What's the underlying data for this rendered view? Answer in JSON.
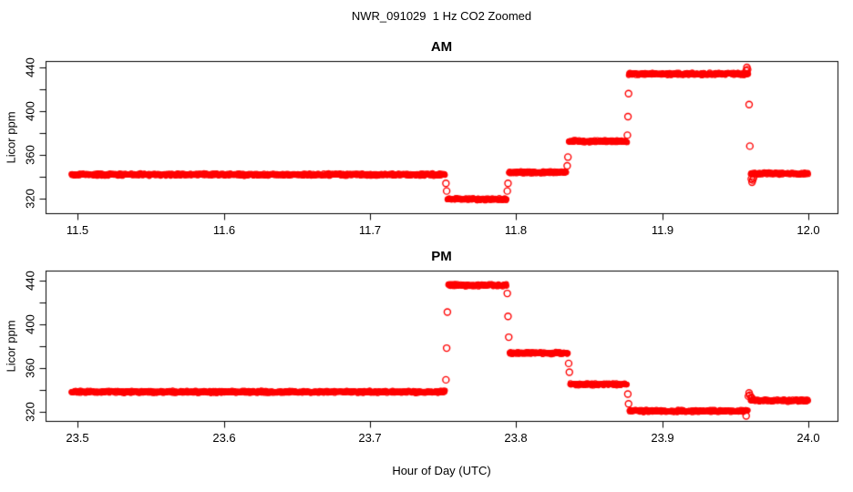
{
  "header": {
    "title": "NWR_091029  1 Hz CO2 Zoomed"
  },
  "footer": {
    "xlabel": "Hour of Day (UTC)"
  },
  "style": {
    "point_color": "#ff0000",
    "axis_color": "#000000",
    "background": "#ffffff"
  },
  "chart_data": [
    {
      "type": "scatter",
      "panel": "AM",
      "title": "AM",
      "ylabel": "Licor ppm",
      "sample_rate_hz": 1,
      "xlim": [
        11.478,
        12.02
      ],
      "ylim": [
        306.7,
        445.8
      ],
      "xticks": [
        11.5,
        11.6,
        11.7,
        11.8,
        11.9,
        12.0
      ],
      "xtick_labels": [
        "11.5",
        "11.6",
        "11.7",
        "11.8",
        "11.9",
        "12.0"
      ],
      "yticks_labeled": [
        320,
        360,
        400,
        440
      ],
      "ytick_labels": [
        "320",
        "360",
        "400",
        "440"
      ],
      "yticks_minor": [
        340,
        380,
        420
      ],
      "segments": [
        {
          "start": 11.4956,
          "end": 11.7515,
          "ppm": 342
        },
        {
          "start": 11.753,
          "end": 11.7935,
          "ppm": 319.5
        },
        {
          "start": 11.795,
          "end": 11.8345,
          "ppm": 344
        },
        {
          "start": 11.836,
          "end": 11.876,
          "ppm": 372.5
        },
        {
          "start": 11.877,
          "end": 11.959,
          "ppm": 434
        },
        {
          "start": 11.9605,
          "end": 12.0,
          "ppm": 343
        }
      ],
      "transition_points": [
        [
          11.752,
          334
        ],
        [
          11.7525,
          327
        ],
        [
          11.794,
          327
        ],
        [
          11.7945,
          334
        ],
        [
          11.835,
          350
        ],
        [
          11.8355,
          358
        ],
        [
          11.8762,
          378
        ],
        [
          11.8766,
          395
        ],
        [
          11.877,
          416
        ],
        [
          11.9575,
          437
        ],
        [
          11.958,
          440
        ],
        [
          11.9585,
          438
        ],
        [
          11.9595,
          406
        ],
        [
          11.96,
          368
        ],
        [
          11.961,
          338
        ],
        [
          11.9615,
          335
        ],
        [
          11.962,
          337
        ],
        [
          11.9625,
          339
        ]
      ]
    },
    {
      "type": "scatter",
      "panel": "PM",
      "title": "PM",
      "ylabel": "Licor ppm",
      "sample_rate_hz": 1,
      "xlim": [
        23.478,
        24.02
      ],
      "ylim": [
        311.4,
        448.9
      ],
      "xticks": [
        23.5,
        23.6,
        23.7,
        23.8,
        23.9,
        24.0
      ],
      "xtick_labels": [
        "23.5",
        "23.6",
        "23.7",
        "23.8",
        "23.9",
        "24.0"
      ],
      "yticks_labeled": [
        320,
        360,
        400,
        440
      ],
      "ytick_labels": [
        "320",
        "360",
        "400",
        "440"
      ],
      "yticks_minor": [
        340,
        380,
        420
      ],
      "segments": [
        {
          "start": 23.4956,
          "end": 23.7515,
          "ppm": 338
        },
        {
          "start": 23.7535,
          "end": 23.7935,
          "ppm": 435.5
        },
        {
          "start": 23.7955,
          "end": 23.8355,
          "ppm": 373.5
        },
        {
          "start": 23.837,
          "end": 23.876,
          "ppm": 345
        },
        {
          "start": 23.8775,
          "end": 23.9585,
          "ppm": 320.5
        },
        {
          "start": 23.9605,
          "end": 24.0,
          "ppm": 330
        }
      ],
      "transition_points": [
        [
          23.752,
          349
        ],
        [
          23.7525,
          378
        ],
        [
          23.753,
          411
        ],
        [
          23.794,
          428
        ],
        [
          23.7945,
          407
        ],
        [
          23.795,
          388
        ],
        [
          23.836,
          364
        ],
        [
          23.8365,
          356
        ],
        [
          23.8765,
          336
        ],
        [
          23.877,
          327
        ],
        [
          23.9575,
          316
        ],
        [
          23.959,
          334
        ],
        [
          23.9595,
          337
        ],
        [
          23.96,
          335
        ],
        [
          23.961,
          333
        ],
        [
          23.9615,
          332
        ]
      ]
    }
  ]
}
